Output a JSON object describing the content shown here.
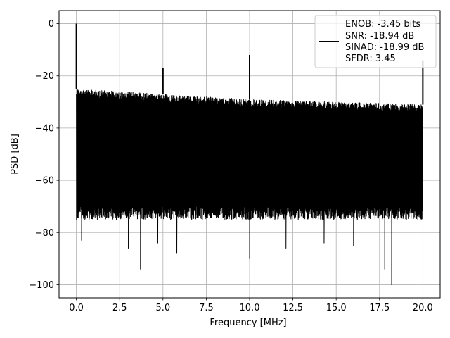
{
  "chart_data": {
    "type": "line",
    "xlabel": "Frequency [MHz]",
    "ylabel": "PSD [dB]",
    "xlim": [
      -1.0,
      21.0
    ],
    "ylim": [
      -105,
      5
    ],
    "grid": true,
    "x_ticks": [
      0.0,
      2.5,
      5.0,
      7.5,
      10.0,
      12.5,
      15.0,
      17.5,
      20.0
    ],
    "x_tick_labels": [
      "0.0",
      "2.5",
      "5.0",
      "7.5",
      "10.0",
      "12.5",
      "15.0",
      "17.5",
      "20.0"
    ],
    "y_ticks": [
      0,
      -20,
      -40,
      -60,
      -80,
      -100
    ],
    "y_tick_labels": [
      "0",
      "−20",
      "−40",
      "−60",
      "−80",
      "−100"
    ],
    "legend": {
      "placement": "upper-right",
      "entries": [
        "ENOB: -3.45 bits",
        "SNR: -18.94 dB",
        "SINAD: -18.99 dB",
        "SFDR: 3.45"
      ]
    },
    "series": [
      {
        "color": "#000000",
        "x_range": [
          0.0,
          20.0
        ],
        "noise_ceiling_db": [
          {
            "x": 0.0,
            "y": -25
          },
          {
            "x": 5.0,
            "y": -27
          },
          {
            "x": 10.0,
            "y": -29
          },
          {
            "x": 15.0,
            "y": -30
          },
          {
            "x": 20.0,
            "y": -31
          }
        ],
        "noise_floor_db": -70,
        "deep_nulls": [
          {
            "x": 0.3,
            "y": -83
          },
          {
            "x": 3.0,
            "y": -86
          },
          {
            "x": 3.7,
            "y": -94
          },
          {
            "x": 4.7,
            "y": -84
          },
          {
            "x": 5.8,
            "y": -88
          },
          {
            "x": 10.0,
            "y": -90
          },
          {
            "x": 12.1,
            "y": -86
          },
          {
            "x": 14.3,
            "y": -84
          },
          {
            "x": 16.0,
            "y": -85
          },
          {
            "x": 17.8,
            "y": -94
          },
          {
            "x": 18.2,
            "y": -100
          }
        ],
        "peaks": [
          {
            "x": 0.0,
            "y": 0
          },
          {
            "x": 5.0,
            "y": -17
          },
          {
            "x": 10.0,
            "y": -12
          },
          {
            "x": 20.0,
            "y": -14
          }
        ]
      }
    ]
  }
}
